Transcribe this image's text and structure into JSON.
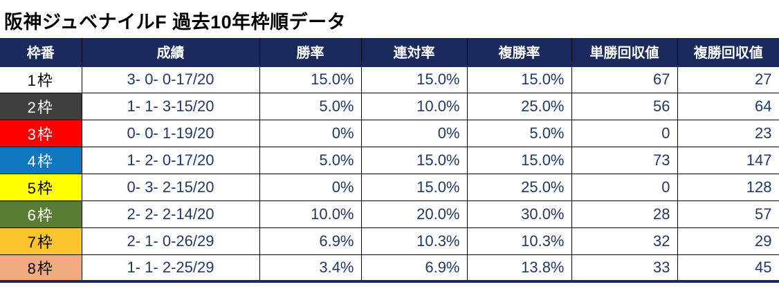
{
  "title": "阪神ジュベナイルF 過去10年枠順データ",
  "colors": {
    "header_bg": "#1b2a5c",
    "value_text": "#1f3864",
    "table_border": "#000000",
    "bottom_border": "#1b2a5c"
  },
  "chart_data": {
    "type": "table",
    "title": "阪神ジュベナイルF 過去10年枠順データ",
    "columns": [
      "枠番",
      "成績",
      "勝率",
      "連対率",
      "複勝率",
      "単勝回収値",
      "複勝回収値"
    ],
    "rows": [
      {
        "waku": "1枠",
        "bg": "#ffffff",
        "fg": "#000000",
        "record": "3- 0- 0-17/20",
        "win": "15.0%",
        "quinella": "15.0%",
        "show": "15.0%",
        "win_return": "67",
        "show_return": "27"
      },
      {
        "waku": "2枠",
        "bg": "#3f3f3f",
        "fg": "#ffffff",
        "record": "1- 1- 3-15/20",
        "win": "5.0%",
        "quinella": "10.0%",
        "show": "25.0%",
        "win_return": "56",
        "show_return": "64"
      },
      {
        "waku": "3枠",
        "bg": "#fe0000",
        "fg": "#ffffff",
        "record": "0- 0- 1-19/20",
        "win": "0%",
        "quinella": "0%",
        "show": "5.0%",
        "win_return": "0",
        "show_return": "23"
      },
      {
        "waku": "4枠",
        "bg": "#0e76bd",
        "fg": "#ffffff",
        "record": "1- 2- 0-17/20",
        "win": "5.0%",
        "quinella": "15.0%",
        "show": "15.0%",
        "win_return": "73",
        "show_return": "147"
      },
      {
        "waku": "5枠",
        "bg": "#ffff00",
        "fg": "#000000",
        "record": "0- 3- 2-15/20",
        "win": "0%",
        "quinella": "15.0%",
        "show": "25.0%",
        "win_return": "0",
        "show_return": "128"
      },
      {
        "waku": "6枠",
        "bg": "#5a7d35",
        "fg": "#ffffff",
        "record": "2- 2- 2-14/20",
        "win": "10.0%",
        "quinella": "20.0%",
        "show": "30.0%",
        "win_return": "28",
        "show_return": "57"
      },
      {
        "waku": "7枠",
        "bg": "#fdc42e",
        "fg": "#000000",
        "record": "2- 1- 0-26/29",
        "win": "6.9%",
        "quinella": "10.3%",
        "show": "10.3%",
        "win_return": "32",
        "show_return": "29"
      },
      {
        "waku": "8枠",
        "bg": "#f2aa80",
        "fg": "#000000",
        "record": "1- 1- 2-25/29",
        "win": "3.4%",
        "quinella": "6.9%",
        "show": "13.8%",
        "win_return": "33",
        "show_return": "45"
      }
    ]
  }
}
